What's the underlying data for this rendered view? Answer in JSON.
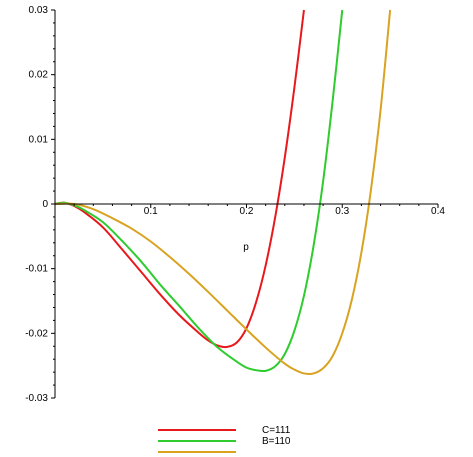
{
  "chart_data": {
    "type": "line",
    "title": "",
    "xlabel": "p",
    "ylabel": "",
    "xlim": [
      0,
      0.4
    ],
    "ylim": [
      -0.03,
      0.03
    ],
    "grid": false,
    "legend_position": "bottom",
    "x_ticks": [
      {
        "value": 0.1,
        "label": "0.1"
      },
      {
        "value": 0.2,
        "label": "0.2"
      },
      {
        "value": 0.3,
        "label": "0.3"
      },
      {
        "value": 0.4,
        "label": "0.4"
      }
    ],
    "y_ticks": [
      {
        "value": 0.03,
        "label": "0.03"
      },
      {
        "value": 0.02,
        "label": "0.02"
      },
      {
        "value": 0.01,
        "label": "0.01"
      },
      {
        "value": 0,
        "label": "0"
      },
      {
        "value": -0.01,
        "label": "-0.01"
      },
      {
        "value": -0.02,
        "label": "-0.02"
      },
      {
        "value": -0.03,
        "label": "-0.03"
      }
    ],
    "series": [
      {
        "name": "C=111",
        "color": "#e8191c",
        "points": [
          [
            0,
            0
          ],
          [
            0.01,
            0.0002
          ],
          [
            0.02,
            -0.0003
          ],
          [
            0.03,
            -0.0012
          ],
          [
            0.05,
            -0.0036
          ],
          [
            0.07,
            -0.007
          ],
          [
            0.09,
            -0.0105
          ],
          [
            0.11,
            -0.014
          ],
          [
            0.13,
            -0.0172
          ],
          [
            0.15,
            -0.0199
          ],
          [
            0.16,
            -0.0211
          ],
          [
            0.17,
            -0.0219
          ],
          [
            0.18,
            -0.0221
          ],
          [
            0.19,
            -0.0214
          ],
          [
            0.2,
            -0.0192
          ],
          [
            0.21,
            -0.0152
          ],
          [
            0.22,
            -0.0095
          ],
          [
            0.23,
            -0.002
          ],
          [
            0.24,
            0.0072
          ],
          [
            0.25,
            0.018
          ],
          [
            0.26,
            0.03
          ]
        ]
      },
      {
        "name": "B=110",
        "color": "#2ecc2e",
        "points": [
          [
            0,
            0
          ],
          [
            0.01,
            0.0002
          ],
          [
            0.02,
            -0.0002
          ],
          [
            0.03,
            -0.0009
          ],
          [
            0.05,
            -0.0028
          ],
          [
            0.07,
            -0.0057
          ],
          [
            0.09,
            -0.0089
          ],
          [
            0.11,
            -0.0125
          ],
          [
            0.13,
            -0.0158
          ],
          [
            0.15,
            -0.0192
          ],
          [
            0.17,
            -0.0222
          ],
          [
            0.19,
            -0.0244
          ],
          [
            0.2,
            -0.0253
          ],
          [
            0.21,
            -0.0257
          ],
          [
            0.22,
            -0.0258
          ],
          [
            0.23,
            -0.0251
          ],
          [
            0.24,
            -0.0232
          ],
          [
            0.25,
            -0.0196
          ],
          [
            0.26,
            -0.0142
          ],
          [
            0.27,
            -0.0065
          ],
          [
            0.28,
            0.0035
          ],
          [
            0.29,
            0.016
          ],
          [
            0.3,
            0.03
          ]
        ]
      },
      {
        "name": "",
        "color": "#d9a321",
        "points": [
          [
            0,
            0
          ],
          [
            0.02,
            0
          ],
          [
            0.04,
            -0.0008
          ],
          [
            0.06,
            -0.0022
          ],
          [
            0.08,
            -0.0038
          ],
          [
            0.1,
            -0.0058
          ],
          [
            0.12,
            -0.0082
          ],
          [
            0.14,
            -0.0108
          ],
          [
            0.16,
            -0.0136
          ],
          [
            0.18,
            -0.0165
          ],
          [
            0.2,
            -0.0194
          ],
          [
            0.22,
            -0.0222
          ],
          [
            0.24,
            -0.0247
          ],
          [
            0.25,
            -0.0256
          ],
          [
            0.26,
            -0.0262
          ],
          [
            0.27,
            -0.0262
          ],
          [
            0.28,
            -0.0254
          ],
          [
            0.29,
            -0.0235
          ],
          [
            0.3,
            -0.02
          ],
          [
            0.31,
            -0.0148
          ],
          [
            0.32,
            -0.0075
          ],
          [
            0.33,
            0.0022
          ],
          [
            0.34,
            0.0145
          ],
          [
            0.35,
            0.03
          ]
        ]
      }
    ]
  }
}
